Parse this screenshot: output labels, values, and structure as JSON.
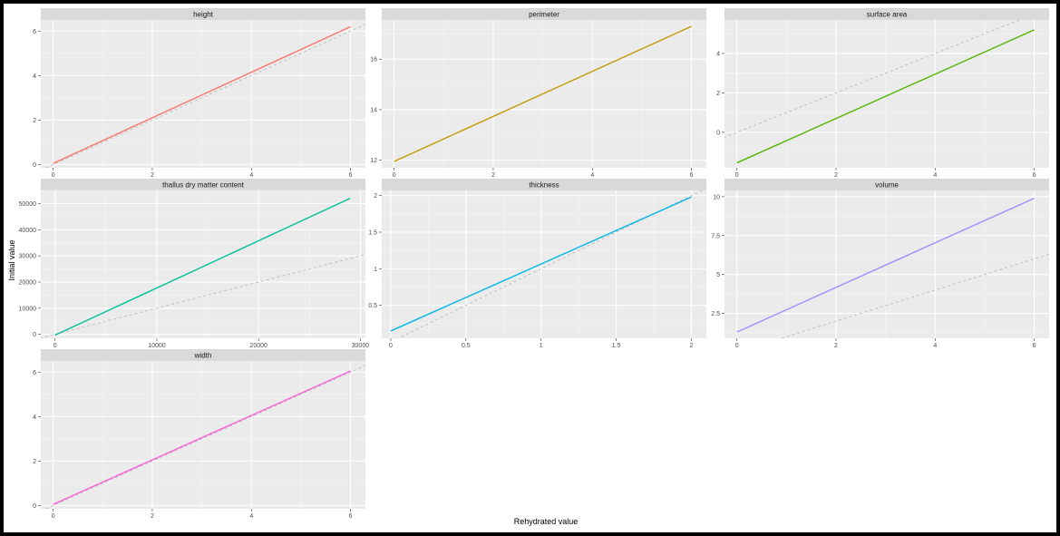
{
  "chart_data": {
    "type": "line",
    "xlabel": "Rehydrated value",
    "ylabel": "Initial value",
    "reference_line": "y = x (dashed grey)",
    "panels": [
      {
        "name": "height",
        "color": "#F8766D",
        "xlim": [
          -0.25,
          6.3
        ],
        "ylim": [
          -0.15,
          6.5
        ],
        "xticks": [
          0,
          2,
          4,
          6
        ],
        "yticks": [
          0,
          2,
          4,
          6
        ],
        "fit": {
          "x": [
            0,
            6
          ],
          "y": [
            0.05,
            6.2
          ]
        }
      },
      {
        "name": "perimeter",
        "color": "#C49A00",
        "xlim": [
          -0.25,
          6.3
        ],
        "ylim": [
          11.7,
          17.55
        ],
        "xticks": [
          0,
          2,
          4,
          6
        ],
        "yticks": [
          12,
          14,
          16
        ],
        "fit": {
          "x": [
            0,
            6
          ],
          "y": [
            11.95,
            17.3
          ]
        }
      },
      {
        "name": "surface area",
        "color": "#53B400",
        "xlim": [
          -0.25,
          6.3
        ],
        "ylim": [
          -1.8,
          5.7
        ],
        "xticks": [
          0,
          2,
          4,
          6
        ],
        "yticks": [
          0,
          2,
          4
        ],
        "fit": {
          "x": [
            0,
            6
          ],
          "y": [
            -1.55,
            5.2
          ]
        }
      },
      {
        "name": "thallus dry matter content",
        "color": "#00C094",
        "xlim": [
          -1400,
          30500
        ],
        "ylim": [
          -1500,
          55000
        ],
        "xticks": [
          0,
          10000,
          20000,
          30000
        ],
        "yticks": [
          0,
          10000,
          20000,
          30000,
          40000,
          50000
        ],
        "fit": {
          "x": [
            0,
            29000
          ],
          "y": [
            -300,
            52000
          ]
        }
      },
      {
        "name": "thickness",
        "color": "#00B6EB",
        "xlim": [
          -0.06,
          2.1
        ],
        "ylim": [
          0.05,
          2.07
        ],
        "xticks": [
          0.0,
          0.5,
          1.0,
          1.5,
          2.0
        ],
        "yticks": [
          0.5,
          1.0,
          1.5,
          2.0
        ],
        "fit": {
          "x": [
            0,
            2
          ],
          "y": [
            0.15,
            1.98
          ]
        }
      },
      {
        "name": "volume",
        "color": "#A58AFF",
        "xlim": [
          -0.25,
          6.3
        ],
        "ylim": [
          0.9,
          10.4
        ],
        "xticks": [
          0,
          2,
          4,
          6
        ],
        "yticks": [
          2.5,
          5.0,
          7.5,
          10.0
        ],
        "fit": {
          "x": [
            0,
            6
          ],
          "y": [
            1.3,
            9.9
          ]
        }
      },
      {
        "name": "width",
        "color": "#FB61D7",
        "xlim": [
          -0.25,
          6.3
        ],
        "ylim": [
          -0.15,
          6.5
        ],
        "xticks": [
          0,
          2,
          4,
          6
        ],
        "yticks": [
          0,
          2,
          4,
          6
        ],
        "fit": {
          "x": [
            0,
            6
          ],
          "y": [
            0.05,
            6.05
          ]
        }
      }
    ]
  }
}
